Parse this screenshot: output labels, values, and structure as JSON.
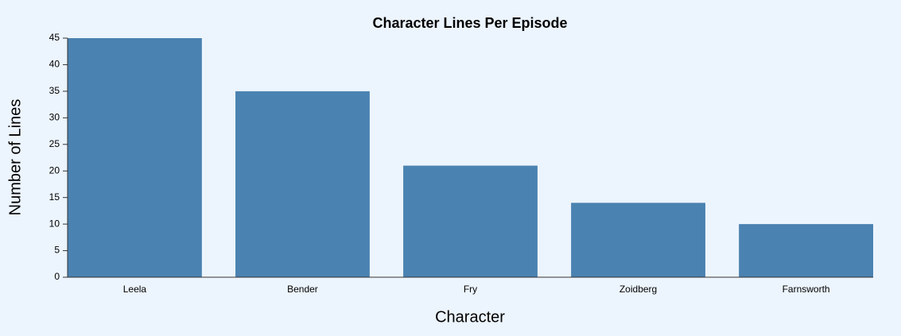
{
  "chart_data": {
    "type": "bar",
    "title": "Character Lines Per Episode",
    "x_label": "Character",
    "y_label": "Number of Lines",
    "categories": [
      "Leela",
      "Bender",
      "Fry",
      "Zoidberg",
      "Farnsworth"
    ],
    "values": [
      45,
      35,
      21,
      14,
      10
    ],
    "color": "#4a82b1",
    "ylim": [
      0,
      45
    ],
    "yticks": [
      0,
      5,
      10,
      15,
      20,
      25,
      30,
      35,
      40,
      45
    ],
    "grid": false
  }
}
